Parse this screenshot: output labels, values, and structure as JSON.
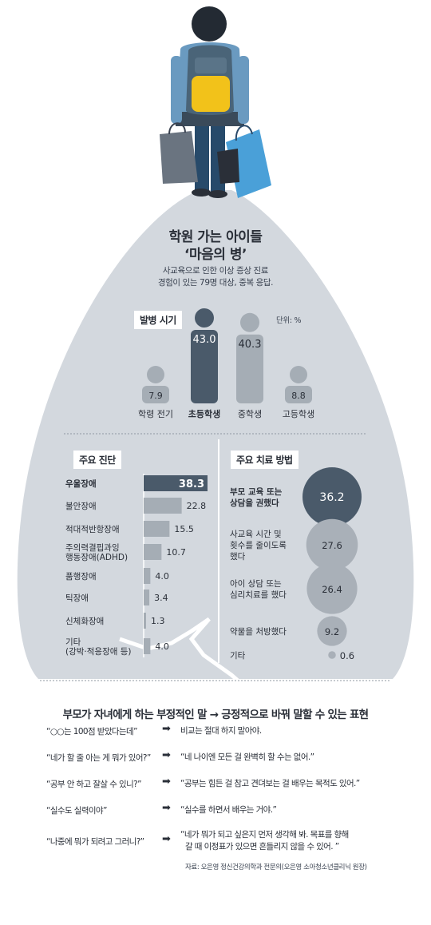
{
  "header": {
    "title_line1": "학원 가는 아이들",
    "title_line2": "‘마음의 병’",
    "subtitle_line1": "사교육으로 인한 이상 증상 진료",
    "subtitle_line2": "경험이 있는 79명 대상, 중복 응답."
  },
  "onset": {
    "tag": "발병 시기",
    "unit": "단위: %"
  },
  "diagnosis": {
    "tag": "주요 진단"
  },
  "treatment": {
    "tag": "주요 치료 방법"
  },
  "expressions": {
    "title": "부모가 자녀에게 하는 부정적인 말 → 긍정적으로 바꿔 말할 수 있는 표현",
    "arrow": "➡",
    "rows": [
      {
        "negative": "“○○는 100점 받았다는데”",
        "positive": "비교는 절대 하지 말아야.",
        "positive2": ""
      },
      {
        "negative": "“네가 할 줄 아는 게 뭐가 있어?”",
        "positive": "“네 나이엔 모든 걸 완벽히 할 수는 없어.”",
        "positive2": ""
      },
      {
        "negative": "“공부 안 하고 잘살 수 있니?”",
        "positive": "“공부는 힘든 걸 참고 견뎌보는 걸 배우는 목적도 있어.”",
        "positive2": ""
      },
      {
        "negative": "“실수도 실력이야”",
        "positive": "“실수를 하면서 배우는 거야.”",
        "positive2": ""
      },
      {
        "negative": "“나중에 뭐가 되려고 그러니?”",
        "positive": "“네가 뭐가 되고 싶은지 먼저 생각해 봐. 목표를 향해",
        "positive2": "갈 때 이정표가 있으면 흔들리지 않을 수 있어. ”"
      }
    ],
    "source": "자료: 오은영 정신건강의학과 전문의(오은영 소아청소년클리닉 원장)"
  },
  "colors": {
    "background_shape": "#d3d8de",
    "dark_bar": "#4a5a6a",
    "light_bar": "#a5adb5",
    "dark_circle": "#4a5a6a",
    "light_circle": "#a9b0b8",
    "person_dark": "#4a5a6a",
    "person_light": "#a5adb5"
  },
  "chart_data": [
    {
      "type": "bar",
      "title": "발병 시기",
      "unit": "단위: %",
      "categories": [
        "학령 전기",
        "초등학생",
        "중학생",
        "고등학생"
      ],
      "values": [
        7.9,
        43.0,
        40.3,
        8.8
      ],
      "value_labels": [
        "7.9",
        "43.0",
        "40.3",
        "8.8"
      ],
      "highlight": "초등학생"
    },
    {
      "type": "bar",
      "orientation": "horizontal",
      "title": "주요 진단",
      "categories": [
        "우울장애",
        "불안장애",
        "적대적반항장애",
        "주의력결핍과잉\n행동장애(ADHD)",
        "품행장애",
        "틱장애",
        "신체화장애",
        "기타\n(강박·적응장애 등)"
      ],
      "label_lines": [
        [
          "우울장애"
        ],
        [
          "불안장애"
        ],
        [
          "적대적반항장애"
        ],
        [
          "주의력결핍과잉",
          "행동장애(ADHD)"
        ],
        [
          "품행장애"
        ],
        [
          "틱장애"
        ],
        [
          "신체화장애"
        ],
        [
          "기타",
          "(강박·적응장애 등)"
        ]
      ],
      "values": [
        38.3,
        22.8,
        15.5,
        10.7,
        4.0,
        3.4,
        1.3,
        4.0
      ],
      "value_labels": [
        "38.3",
        "22.8",
        "15.5",
        "10.7",
        "4.0",
        "3.4",
        "1.3",
        "4.0"
      ]
    },
    {
      "type": "bubble",
      "title": "주요 치료 방법",
      "categories": [
        "부모 교육 또는 상담을 권했다",
        "사교육 시간 및 횟수를 줄이도록 했다",
        "아이 상담 또는 심리치료를 했다",
        "약물을 처방했다",
        "기타"
      ],
      "label_lines": [
        [
          "부모 교육 또는",
          "상담을 권했다"
        ],
        [
          "사교육 시간 및",
          "횟수를 줄이도록",
          "했다"
        ],
        [
          "아이 상담 또는",
          "심리치료를 했다"
        ],
        [
          "약물을 처방했다"
        ],
        [
          "기타"
        ]
      ],
      "values": [
        36.2,
        27.6,
        26.4,
        9.2,
        0.6
      ],
      "value_labels": [
        "36.2",
        "27.6",
        "26.4",
        "9.2",
        "0.6"
      ]
    }
  ]
}
